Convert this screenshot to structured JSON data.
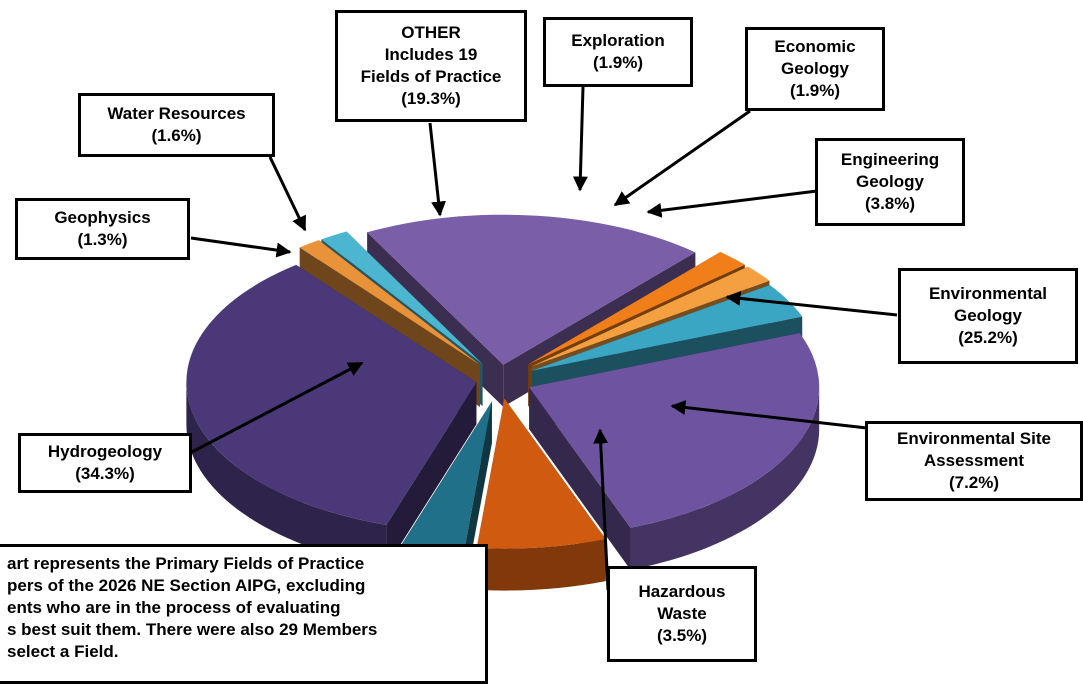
{
  "chart_data": {
    "type": "pie",
    "title": "",
    "slices": [
      {
        "label": "OTHER Includes 19 Fields of Practice",
        "label_lines": [
          "OTHER",
          "Includes 19",
          "Fields of Practice"
        ],
        "pct_text": "(19.3%)",
        "value": 19.3,
        "color": "#7a5fa8"
      },
      {
        "label": "Exploration",
        "label_lines": [
          "Exploration"
        ],
        "pct_text": "(1.9%)",
        "value": 1.9,
        "color": "#f07f1a"
      },
      {
        "label": "Economic Geology",
        "label_lines": [
          "Economic",
          "Geology"
        ],
        "pct_text": "(1.9%)",
        "value": 1.9,
        "color": "#f5a040"
      },
      {
        "label": "Engineering Geology",
        "label_lines": [
          "Engineering",
          "Geology"
        ],
        "pct_text": "(3.8%)",
        "value": 3.8,
        "color": "#3aa6c4"
      },
      {
        "label": "Environmental Geology",
        "label_lines": [
          "Environmental",
          "Geology"
        ],
        "pct_text": "(25.2%)",
        "value": 25.2,
        "color": "#6e54a0"
      },
      {
        "label": "Environmental Site Assessment",
        "label_lines": [
          "Environmental Site",
          "Assessment"
        ],
        "pct_text": "(7.2%)",
        "value": 7.2,
        "color": "#d05a10"
      },
      {
        "label": "Hazardous Waste",
        "label_lines": [
          "Hazardous",
          "Waste"
        ],
        "pct_text": "(3.5%)",
        "value": 3.5,
        "color": "#1f7088"
      },
      {
        "label": "Hydrogeology",
        "label_lines": [
          "Hydrogeology"
        ],
        "pct_text": "(34.3%)",
        "value": 34.3,
        "color": "#4a3878"
      },
      {
        "label": "Geophysics",
        "label_lines": [
          "Geophysics"
        ],
        "pct_text": "(1.3%)",
        "value": 1.3,
        "color": "#e8923a"
      },
      {
        "label": "Water Resources",
        "label_lines": [
          "Water Resources"
        ],
        "pct_text": "(1.6%)",
        "value": 1.6,
        "color": "#4cb6d0"
      }
    ],
    "note_lines": [
      "art represents the Primary Fields of Practice",
      "pers of the 2026 NE Section AIPG, excluding",
      "ents who are in the process of evaluating",
      "s best suit them.  There were also 29 Members",
      "select a Field."
    ]
  }
}
